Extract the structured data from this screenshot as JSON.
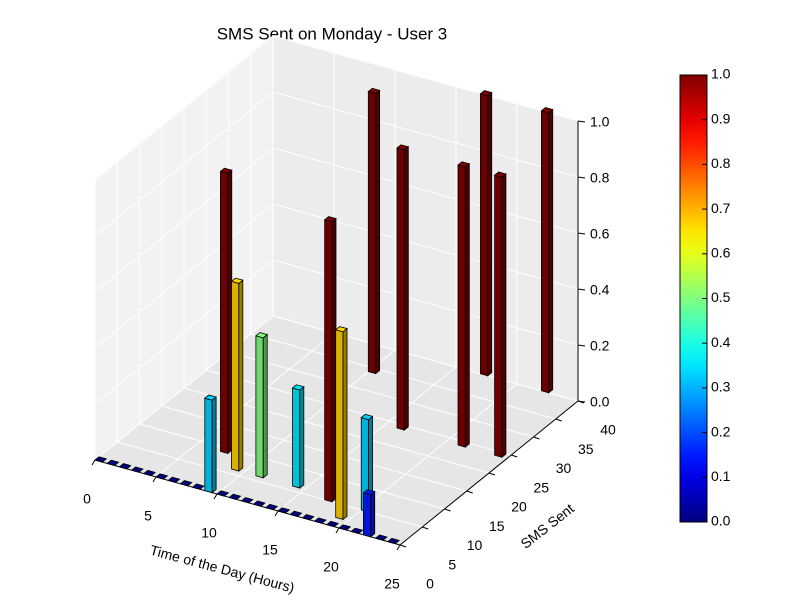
{
  "chart_data": {
    "type": "bar3d",
    "title": "SMS Sent on Monday - User 3",
    "xlabel": "Time of the Day (Hours)",
    "ylabel": "SMS Sent",
    "colormap": "jet",
    "grid": true,
    "bars": {
      "x": [
        9,
        9,
        7,
        11,
        14,
        17,
        19,
        20,
        22,
        10,
        16,
        21,
        24,
        17,
        22,
        0,
        1,
        2,
        3,
        4,
        5,
        6,
        7,
        8,
        10,
        11,
        12,
        13,
        14,
        15,
        16,
        17,
        18,
        19,
        20,
        21,
        23,
        24
      ],
      "y": [
        0,
        6,
        9,
        6,
        6,
        5,
        2,
        5,
        0,
        34,
        24,
        24,
        24,
        40,
        40,
        0,
        0,
        0,
        0,
        0,
        0,
        0,
        0,
        0,
        0,
        0,
        0,
        0,
        0,
        0,
        0,
        0,
        0,
        0,
        0,
        0,
        0,
        0
      ],
      "z": [
        0.33,
        0.67,
        1,
        0.5,
        0.35,
        1,
        0.67,
        0.33,
        0.15,
        1,
        1,
        1,
        1,
        1,
        1,
        0,
        0,
        0,
        0,
        0,
        0,
        0,
        0,
        0,
        0,
        0,
        0,
        0,
        0,
        0,
        0,
        0,
        0,
        0,
        0,
        0,
        0,
        0
      ]
    },
    "xlim": [
      0,
      25
    ],
    "xticks": [
      0,
      5,
      10,
      15,
      20,
      25
    ],
    "ylim": [
      0,
      40
    ],
    "yticks": [
      0,
      5,
      10,
      15,
      20,
      25,
      30,
      35,
      40
    ],
    "zlim": [
      0,
      1
    ],
    "zticks": [
      {
        "value": 0,
        "label": "0.0"
      },
      {
        "value": 0.2,
        "label": "0.2"
      },
      {
        "value": 0.4,
        "label": "0.4"
      },
      {
        "value": 0.6,
        "label": "0.6"
      },
      {
        "value": 0.8,
        "label": "0.8"
      },
      {
        "value": 1,
        "label": "1.0"
      }
    ],
    "colorbar_lim": [
      0,
      1
    ],
    "colorbar_ticks": [
      {
        "value": 0,
        "label": "0.0"
      },
      0.1,
      0.2,
      0.3,
      0.4,
      0.5,
      0.6,
      0.7,
      0.8,
      0.9,
      {
        "value": 1,
        "label": "1.0"
      }
    ]
  }
}
